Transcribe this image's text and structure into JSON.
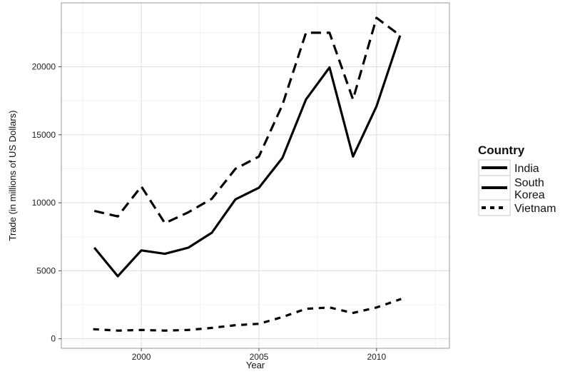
{
  "chart_data": {
    "type": "line",
    "title": "",
    "xlabel": "Year",
    "ylabel": "Trade (in millions of US Dollars)",
    "xlim": [
      1996.6,
      2013.1
    ],
    "ylim": [
      -700,
      24700
    ],
    "x_ticks": [
      2000,
      2005,
      2010
    ],
    "x_tick_labels": [
      "2000",
      "2005",
      "2010"
    ],
    "y_ticks": [
      0,
      5000,
      10000,
      15000,
      20000
    ],
    "y_tick_labels": [
      "0",
      "5000",
      "10000",
      "15000",
      "20000"
    ],
    "grid": true,
    "legend": {
      "title": "Country",
      "position": "right",
      "entries": [
        {
          "label": "India",
          "style": "solid"
        },
        {
          "label": "South\nKorea",
          "style": "dashed"
        },
        {
          "label": "Vietnam",
          "style": "dotted"
        }
      ]
    },
    "x": [
      1998,
      1999,
      2000,
      2001,
      2002,
      2003,
      2004,
      2005,
      2006,
      2007,
      2008,
      2009,
      2010,
      2011
    ],
    "series": [
      {
        "name": "India",
        "style": "solid",
        "values": [
          6700,
          4600,
          6500,
          6250,
          6700,
          7800,
          10250,
          11100,
          13300,
          17600,
          19950,
          13400,
          17100,
          22300
        ]
      },
      {
        "name": "South Korea",
        "style": "dashed",
        "values": [
          9400,
          9000,
          11200,
          8500,
          9300,
          10300,
          12500,
          13400,
          17200,
          22500,
          22500,
          17600,
          23600,
          22300
        ]
      },
      {
        "name": "Vietnam",
        "style": "dotted",
        "values": [
          700,
          600,
          650,
          600,
          650,
          800,
          1000,
          1100,
          1600,
          2200,
          2300,
          1900,
          2300,
          2900
        ]
      }
    ]
  }
}
